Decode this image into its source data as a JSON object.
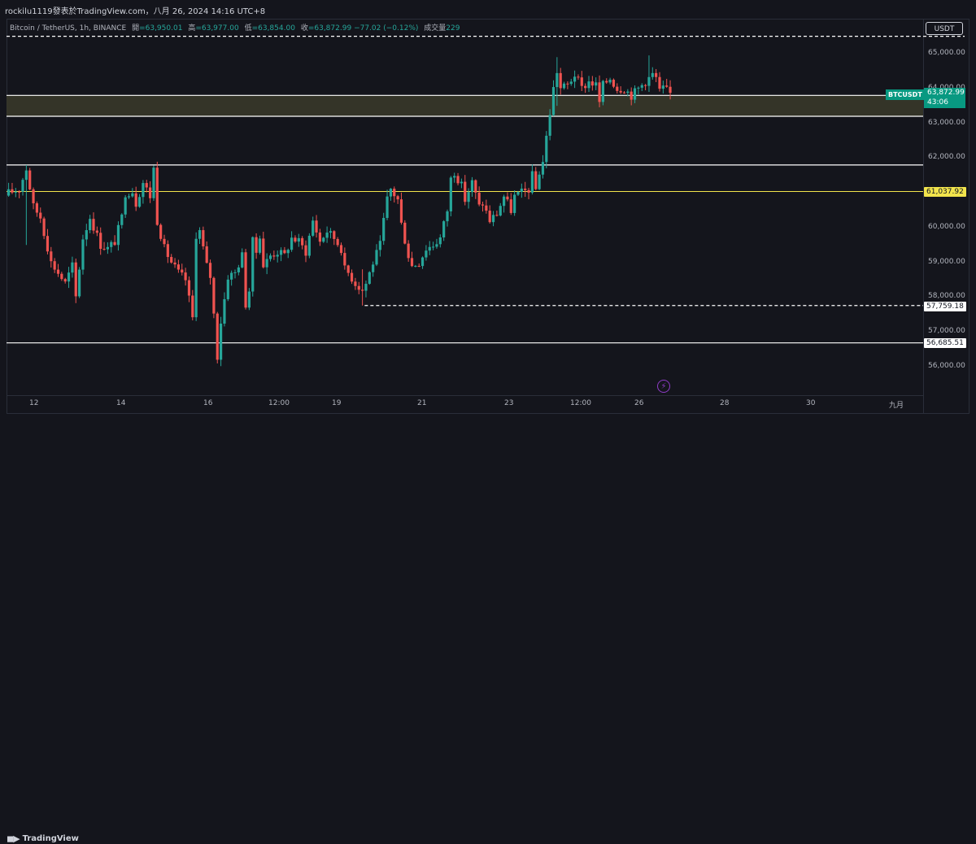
{
  "header": {
    "attribution": "rockilu1119發表於TradingView.com，八月 26, 2024 14:16 UTC+8"
  },
  "legend": {
    "symbol": "Bitcoin / TetherUS, 1h, BINANCE",
    "open_label": "開",
    "open": "=63,950.01",
    "high_label": "高",
    "high": "=63,977.00",
    "low_label": "低",
    "low": "=63,854.00",
    "close_label": "收",
    "close": "=63,872.99",
    "change": "−77.02 (−0.12%)",
    "volume_label": "成交量",
    "volume": "229"
  },
  "currency_button": "USDT",
  "price_tags": {
    "symbol": "BTCUSDT",
    "current_price": "63,872.99",
    "countdown": "43:06",
    "yellow_line": "61,037.92",
    "dashed_low": "57,759.18",
    "solid_low": "56,685.51"
  },
  "footer": {
    "brand": "TradingView"
  },
  "colors": {
    "up": "#26a69a",
    "down": "#ef5350",
    "background": "#14151c",
    "yellow_line": "#f2e44c",
    "zone_fill": "#3a3a2a"
  },
  "chart_data": {
    "type": "candlestick",
    "price_axis": {
      "ylim": [
        55600,
        65600
      ],
      "ticks": [
        "65,000.00",
        "64,000.00",
        "63,000.00",
        "62,000.00",
        "61,000.00",
        "60,000.00",
        "59,000.00",
        "58,000.00",
        "57,000.00",
        "56,000.00"
      ],
      "tick_values": [
        65000,
        64000,
        63000,
        62000,
        61000,
        60000,
        59000,
        58000,
        57000,
        56000
      ]
    },
    "time_axis": {
      "ticks": [
        "12",
        "14",
        "16",
        "12:00",
        "19",
        "21",
        "23",
        "12:00",
        "26",
        "28",
        "30",
        "九月"
      ]
    },
    "horizontal_levels": [
      {
        "price": 65500,
        "style": "dashed"
      },
      {
        "price": 63800,
        "style": "solid"
      },
      {
        "price": 63200,
        "style": "solid"
      },
      {
        "price": 61800,
        "style": "solid"
      },
      {
        "price": 61037.92,
        "style": "solid-yellow"
      },
      {
        "price": 57759.18,
        "style": "dashed"
      },
      {
        "price": 56685.51,
        "style": "solid"
      }
    ],
    "zone": {
      "from": 63200,
      "to": 63800
    },
    "path": [
      [
        0,
        61000
      ],
      [
        3,
        61100
      ],
      [
        5,
        61700
      ],
      [
        7,
        60600
      ],
      [
        9,
        60300
      ],
      [
        12,
        59000
      ],
      [
        14,
        58700
      ],
      [
        16,
        58400
      ],
      [
        18,
        58900
      ],
      [
        19,
        58000
      ],
      [
        21,
        59700
      ],
      [
        23,
        60300
      ],
      [
        26,
        59500
      ],
      [
        28,
        59400
      ],
      [
        30,
        59600
      ],
      [
        32,
        60300
      ],
      [
        33,
        61000
      ],
      [
        35,
        61050
      ],
      [
        36,
        60700
      ],
      [
        38,
        61300
      ],
      [
        40,
        60900
      ],
      [
        41,
        61700
      ],
      [
        42,
        60200
      ],
      [
        44,
        59400
      ],
      [
        46,
        59000
      ],
      [
        48,
        58700
      ],
      [
        50,
        58500
      ],
      [
        52,
        57400
      ],
      [
        53,
        59800
      ],
      [
        54,
        59900
      ],
      [
        56,
        58900
      ],
      [
        57,
        58600
      ],
      [
        58,
        57500
      ],
      [
        59,
        56300
      ],
      [
        60,
        57300
      ],
      [
        62,
        58600
      ],
      [
        64,
        58700
      ],
      [
        66,
        59200
      ],
      [
        67,
        57800
      ],
      [
        68,
        58200
      ],
      [
        69,
        59600
      ],
      [
        70,
        59300
      ],
      [
        71,
        59800
      ],
      [
        72,
        58900
      ],
      [
        74,
        59200
      ],
      [
        76,
        59300
      ],
      [
        78,
        59200
      ],
      [
        80,
        59700
      ],
      [
        82,
        59600
      ],
      [
        84,
        59300
      ],
      [
        86,
        60200
      ],
      [
        88,
        59600
      ],
      [
        90,
        59900
      ],
      [
        92,
        59700
      ],
      [
        94,
        59400
      ],
      [
        95,
        58800
      ],
      [
        96,
        58700
      ],
      [
        98,
        58400
      ],
      [
        100,
        58200
      ],
      [
        101,
        58400
      ],
      [
        103,
        59000
      ],
      [
        105,
        59500
      ],
      [
        106,
        60200
      ],
      [
        107,
        60800
      ],
      [
        108,
        61100
      ],
      [
        110,
        60800
      ],
      [
        111,
        60100
      ],
      [
        113,
        59200
      ],
      [
        114,
        58900
      ],
      [
        116,
        59000
      ],
      [
        118,
        59400
      ],
      [
        120,
        59500
      ],
      [
        122,
        59700
      ],
      [
        124,
        60500
      ],
      [
        125,
        61400
      ],
      [
        126,
        61600
      ],
      [
        128,
        61200
      ],
      [
        129,
        60800
      ],
      [
        131,
        61300
      ],
      [
        133,
        60600
      ],
      [
        134,
        60700
      ],
      [
        136,
        60200
      ],
      [
        138,
        60400
      ],
      [
        140,
        60900
      ],
      [
        142,
        60500
      ],
      [
        143,
        60900
      ],
      [
        145,
        61000
      ],
      [
        147,
        61100
      ],
      [
        148,
        61500
      ],
      [
        149,
        61100
      ],
      [
        150,
        61600
      ],
      [
        151,
        61900
      ],
      [
        152,
        62600
      ],
      [
        153,
        63300
      ],
      [
        154,
        64000
      ],
      [
        155,
        64500
      ],
      [
        156,
        64000
      ],
      [
        158,
        64100
      ],
      [
        160,
        64400
      ],
      [
        162,
        64000
      ],
      [
        164,
        64200
      ],
      [
        166,
        64100
      ],
      [
        167,
        63600
      ],
      [
        168,
        64100
      ],
      [
        170,
        64300
      ],
      [
        172,
        64000
      ],
      [
        174,
        64000
      ],
      [
        176,
        63800
      ],
      [
        178,
        64000
      ],
      [
        180,
        64200
      ],
      [
        182,
        64400
      ],
      [
        183,
        64300
      ],
      [
        184,
        63900
      ],
      [
        185,
        64000
      ],
      [
        187,
        63873
      ]
    ],
    "extremes": [
      {
        "i": 5,
        "low": 59500,
        "high": 61800
      },
      {
        "i": 59,
        "low": 56100,
        "high": 57500
      },
      {
        "i": 100,
        "low": 57759,
        "high": 58800
      },
      {
        "i": 155,
        "low": 63500,
        "high": 64900
      },
      {
        "i": 181,
        "low": 63900,
        "high": 64950
      }
    ]
  }
}
